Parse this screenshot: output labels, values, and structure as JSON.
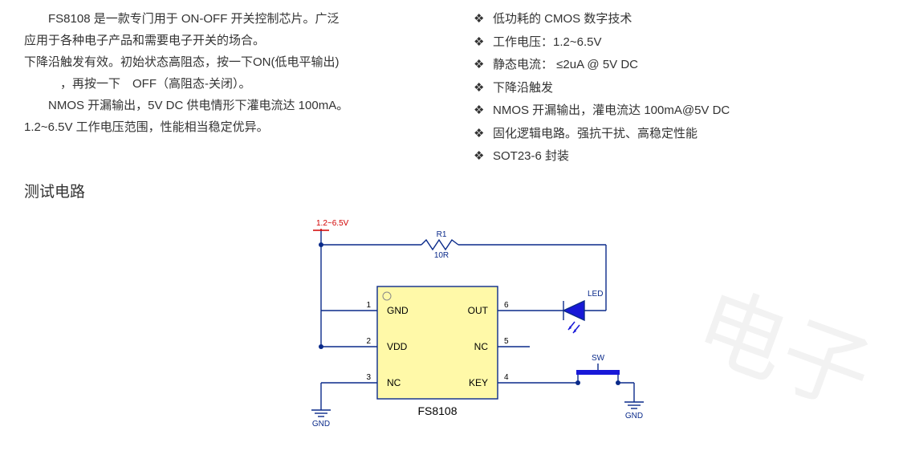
{
  "desc": {
    "p1a": "FS8108 是一款专门用于 ON-OFF 开关控制芯片。广泛",
    "p1b": "应用于各种电子产品和需要电子开关的场合。",
    "p2a": "下降沿触发有效。初始状态高阻态，按一下ON(低电平输出)",
    "p2b": "，再按一下　OFF（高阻态-关闭）。",
    "p3a": "NMOS 开漏输出，5V DC 供电情形下灌电流达 100mA。",
    "p3b": "1.2~6.5V 工作电压范围，性能相当稳定优异。"
  },
  "features": [
    "低功耗的 CMOS 数字技术",
    "工作电压：1.2~6.5V",
    "静态电流： ≤2uA @ 5V DC",
    "下降沿触发",
    "NMOS 开漏输出，灌电流达 100mA@5V DC",
    "固化逻辑电路。强抗干扰、高稳定性能",
    "SOT23-6 封装"
  ],
  "section_title": "测试电路",
  "circuit": {
    "chip_name": "FS8108",
    "vlabel": "1.2~6.5V",
    "r_ref": "R1",
    "r_val": "10R",
    "led_label": "LED",
    "sw_label": "SW",
    "gnd": "GND",
    "pins": {
      "p1": {
        "num": "1",
        "name": "GND"
      },
      "p2": {
        "num": "2",
        "name": "VDD"
      },
      "p3": {
        "num": "3",
        "name": "NC"
      },
      "p4": {
        "num": "4",
        "name": "KEY"
      },
      "p5": {
        "num": "5",
        "name": "NC"
      },
      "p6": {
        "num": "6",
        "name": "OUT"
      }
    },
    "colors": {
      "wire": "#0a2a8a",
      "chip_fill": "#fff9a8",
      "chip_stroke": "#0a2a8a",
      "text": "#000000",
      "red": "#d20000",
      "led_fill": "#1818d8",
      "sw_fill": "#1818d8"
    },
    "stroke_width": 1.4,
    "font_family": "Arial, sans-serif",
    "pin_font_size": 12,
    "label_font_size": 12,
    "small_font_size": 10
  },
  "watermark": "电子"
}
